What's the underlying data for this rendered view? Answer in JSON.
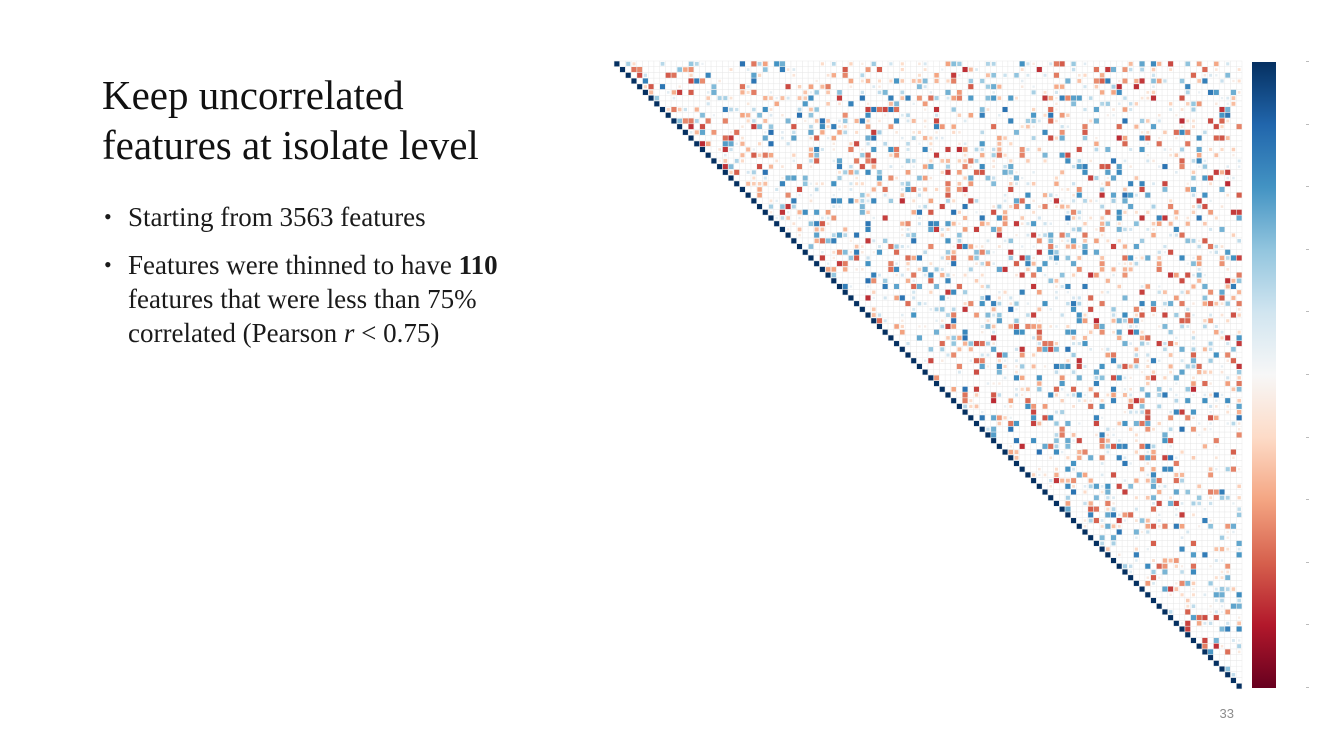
{
  "slide": {
    "title_lines": [
      "Keep uncorrelated",
      "features at isolate level"
    ],
    "bullet1": "Starting from 3563 features",
    "bullet2": {
      "prefix": "Features were thinned to have ",
      "bold": "110",
      "line2": "features that were less than 75%",
      "line3_prefix": "correlated (Pearson ",
      "line3_italic": "r",
      "line3_suffix": " < 0.75)"
    },
    "page_number": "33"
  },
  "chart_data": {
    "type": "heatmap",
    "description_level": "lower-triangle removed; upper-triangle correlation matrix",
    "matrix_size": 110,
    "diagonal_value": 1,
    "color_scale": {
      "min": -1,
      "max": 1,
      "colors": [
        "#67001f",
        "#b2182b",
        "#d6604d",
        "#f4a582",
        "#fddbc7",
        "#f7f7f7",
        "#d1e5f0",
        "#92c5de",
        "#4393c3",
        "#2166ac",
        "#053061"
      ]
    }
  }
}
